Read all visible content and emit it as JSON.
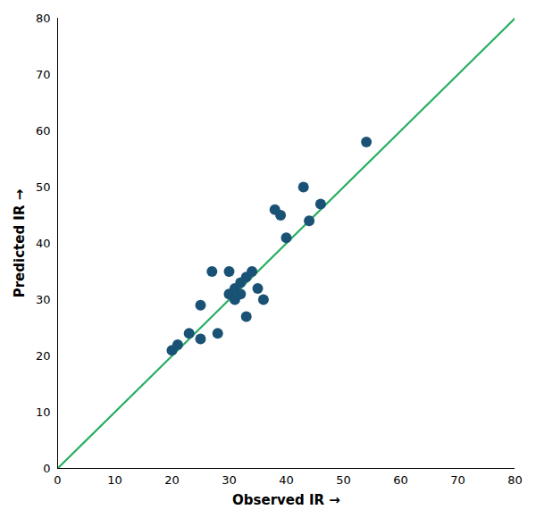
{
  "chart_data": {
    "type": "scatter",
    "xlabel": "Observed IR",
    "ylabel": "Predicted IR",
    "series": [
      {
        "type": "line",
        "color": "#27ae60",
        "x": [
          0,
          80
        ],
        "values": [
          0,
          80
        ]
      },
      {
        "type": "scatter",
        "color": "#1a5276",
        "x": [
          20,
          21,
          23,
          25,
          25,
          27,
          28,
          30,
          30,
          31,
          31,
          32,
          32,
          33,
          33,
          34,
          35,
          36,
          38,
          39,
          40,
          43,
          44,
          46,
          54
        ],
        "values": [
          21,
          22,
          24,
          23,
          29,
          35,
          24,
          31,
          35,
          30,
          32,
          33,
          31,
          34,
          27,
          35,
          32,
          30,
          46,
          45,
          41,
          50,
          44,
          47,
          58
        ]
      }
    ],
    "xlim": [
      0,
      80
    ],
    "ylim": [
      0,
      80
    ],
    "xticks": [
      0,
      10,
      20,
      30,
      40,
      50,
      60,
      70,
      80
    ],
    "yticks": [
      0,
      10,
      20,
      30,
      40,
      50,
      60,
      70,
      80
    ],
    "grid": false
  }
}
